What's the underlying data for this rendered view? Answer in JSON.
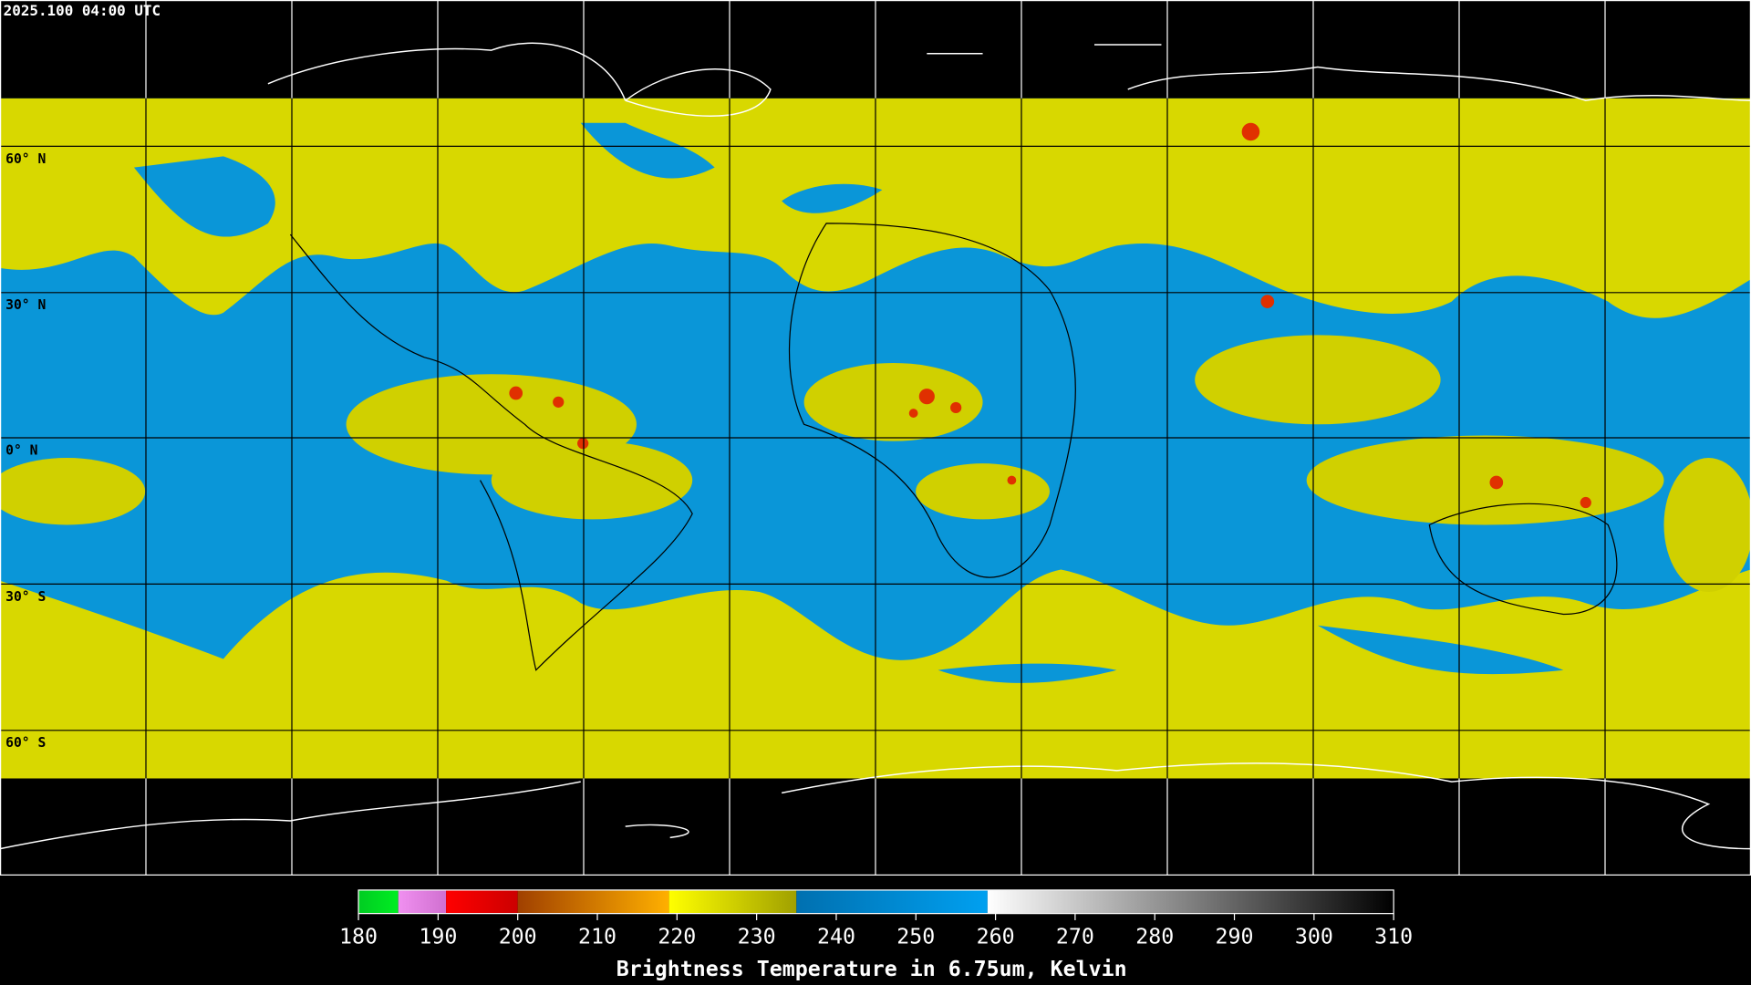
{
  "header": {
    "title": "2025.100 04:00 UTC"
  },
  "latitude_labels": [
    "60° N",
    "30° N",
    "0° N",
    "30° S",
    "60° S"
  ],
  "colorbar": {
    "ticks": [
      180,
      190,
      200,
      210,
      220,
      230,
      240,
      250,
      260,
      270,
      280,
      290,
      300,
      310
    ],
    "segments": [
      {
        "from": 180,
        "to": 185,
        "colors": [
          "#00cc22",
          "#00ee22"
        ]
      },
      {
        "from": 185,
        "to": 191,
        "colors": [
          "#f090f0",
          "#d070d0"
        ]
      },
      {
        "from": 191,
        "to": 200,
        "colors": [
          "#ff0000",
          "#cc0000"
        ]
      },
      {
        "from": 200,
        "to": 219,
        "colors": [
          "#a04000",
          "#ffb000"
        ]
      },
      {
        "from": 219,
        "to": 235,
        "colors": [
          "#ffff00",
          "#a0a000"
        ]
      },
      {
        "from": 235,
        "to": 259,
        "colors": [
          "#0070b0",
          "#00a0f0"
        ]
      },
      {
        "from": 259,
        "to": 310,
        "colors": [
          "#ffffff",
          "#000000"
        ]
      }
    ],
    "label": "Brightness Temperature in 6.75um, Kelvin"
  }
}
